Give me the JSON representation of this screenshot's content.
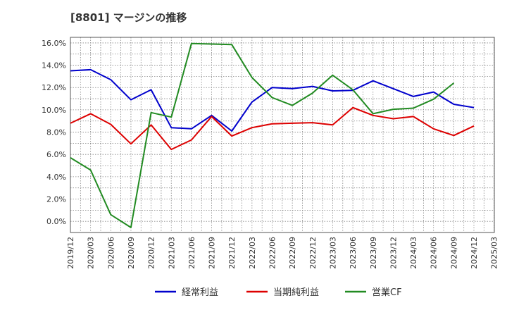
{
  "title": "[8801]  マージンの推移",
  "chart_data": {
    "type": "line",
    "title": "[8801]  マージンの推移",
    "xlabel": "",
    "ylabel": "",
    "x": [
      "2019/12",
      "2020/03",
      "2020/06",
      "2020/09",
      "2020/12",
      "2021/03",
      "2021/06",
      "2021/09",
      "2021/12",
      "2022/03",
      "2022/06",
      "2022/09",
      "2022/12",
      "2023/03",
      "2023/06",
      "2023/09",
      "2023/12",
      "2024/03",
      "2024/06",
      "2024/09",
      "2024/12",
      "2025/03"
    ],
    "yticks": [
      "0.0%",
      "2.0%",
      "4.0%",
      "6.0%",
      "8.0%",
      "10.0%",
      "12.0%",
      "14.0%",
      "16.0%"
    ],
    "ylim": [
      -1.0,
      16.5
    ],
    "grid": true,
    "legend": "bottom",
    "series": [
      {
        "name": "経常利益",
        "color": "#0000cc",
        "values": [
          13.5,
          13.6,
          12.7,
          10.9,
          11.8,
          8.4,
          8.3,
          9.5,
          8.1,
          10.7,
          12.0,
          11.9,
          12.1,
          11.7,
          11.75,
          12.6,
          11.9,
          11.2,
          11.6,
          10.5,
          10.2,
          null
        ]
      },
      {
        "name": "当期純利益",
        "color": "#dd0000",
        "values": [
          8.8,
          9.65,
          8.7,
          6.95,
          8.65,
          6.45,
          7.3,
          9.4,
          7.65,
          8.4,
          8.75,
          8.8,
          8.85,
          8.65,
          10.2,
          9.5,
          9.2,
          9.4,
          8.3,
          7.7,
          8.55,
          null
        ]
      },
      {
        "name": "営業CF",
        "color": "#228b22",
        "values": [
          5.7,
          4.6,
          0.6,
          -0.55,
          9.75,
          9.35,
          15.95,
          15.9,
          15.85,
          12.9,
          11.1,
          10.4,
          11.5,
          13.1,
          11.8,
          9.65,
          10.05,
          10.15,
          10.95,
          12.4,
          null,
          null
        ]
      }
    ]
  }
}
